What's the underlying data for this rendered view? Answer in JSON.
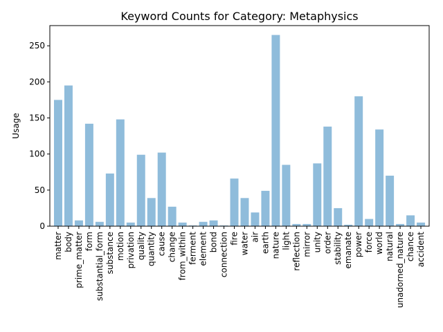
{
  "chart_data": {
    "type": "bar",
    "title": "Keyword Counts for Category: Metaphysics",
    "xlabel": "",
    "ylabel": "Usage",
    "ylim": [
      0,
      278
    ],
    "yticks": [
      0,
      50,
      100,
      150,
      200,
      250
    ],
    "grid": false,
    "bar_color": "#8fbcdb",
    "categories": [
      "matter",
      "body",
      "prime_matter",
      "form",
      "substantial_form",
      "substance",
      "motion",
      "privation",
      "quality",
      "quantity",
      "cause",
      "change",
      "from_within",
      "ferment",
      "element",
      "bond",
      "connection",
      "fire",
      "water",
      "air",
      "earth",
      "nature",
      "light",
      "reflection",
      "mirror",
      "unity",
      "order",
      "stability",
      "emanate",
      "power",
      "force",
      "world",
      "natural",
      "unadorned_nature",
      "chance",
      "accident"
    ],
    "values": [
      175,
      195,
      8,
      142,
      6,
      73,
      148,
      5,
      99,
      39,
      102,
      27,
      5,
      1,
      6,
      8,
      1,
      66,
      39,
      19,
      49,
      265,
      85,
      3,
      3,
      87,
      138,
      25,
      2,
      180,
      10,
      134,
      70,
      3,
      15,
      5
    ]
  }
}
